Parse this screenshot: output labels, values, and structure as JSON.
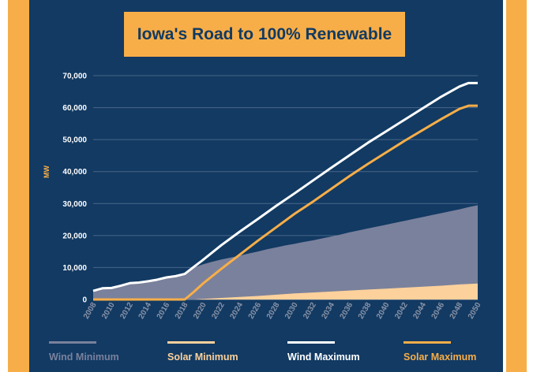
{
  "colors": {
    "background": "#123a63",
    "accent": "#f7ae48",
    "wind_min": "#7a819c",
    "solar_min": "#fcd19b",
    "wind_max": "#ffffff",
    "solar_max": "#f7ae48"
  },
  "chart_data": {
    "type": "area",
    "title": "Iowa's Road to 100% Renewable",
    "ylabel": "MW",
    "xlabel": "",
    "ylim": [
      0,
      70000
    ],
    "xlim": [
      2008,
      2050
    ],
    "grid": true,
    "legend_position": "bottom",
    "y_ticks": [
      "0",
      "10,000",
      "20,000",
      "30,000",
      "40,000",
      "50,000",
      "60,000",
      "70,000"
    ],
    "x_ticks": [
      "2008",
      "2010",
      "2012",
      "2014",
      "2016",
      "2018",
      "2020",
      "2022",
      "2024",
      "2026",
      "2028",
      "2030",
      "2032",
      "2034",
      "2036",
      "2038",
      "2040",
      "2042",
      "2044",
      "2046",
      "2048",
      "2050"
    ],
    "series": [
      {
        "name": "Wind Minimum",
        "style": "area",
        "color": "#7a819c",
        "points": [
          [
            2008,
            2700
          ],
          [
            2009,
            3500
          ],
          [
            2010,
            3600
          ],
          [
            2011,
            4300
          ],
          [
            2012,
            5100
          ],
          [
            2013,
            5300
          ],
          [
            2014,
            5700
          ],
          [
            2015,
            6200
          ],
          [
            2016,
            6900
          ],
          [
            2017,
            7300
          ],
          [
            2018,
            8000
          ],
          [
            2019,
            10000
          ],
          [
            2020,
            11000
          ],
          [
            2021,
            11800
          ],
          [
            2022,
            12500
          ],
          [
            2023,
            13100
          ],
          [
            2024,
            13700
          ],
          [
            2025,
            14400
          ],
          [
            2026,
            15000
          ],
          [
            2027,
            15700
          ],
          [
            2028,
            16300
          ],
          [
            2029,
            16900
          ],
          [
            2030,
            17400
          ],
          [
            2031,
            18000
          ],
          [
            2032,
            18500
          ],
          [
            2033,
            19100
          ],
          [
            2034,
            19700
          ],
          [
            2035,
            20300
          ],
          [
            2036,
            21000
          ],
          [
            2037,
            21600
          ],
          [
            2038,
            22200
          ],
          [
            2039,
            22800
          ],
          [
            2040,
            23400
          ],
          [
            2041,
            24000
          ],
          [
            2042,
            24600
          ],
          [
            2043,
            25200
          ],
          [
            2044,
            25800
          ],
          [
            2045,
            26400
          ],
          [
            2046,
            27000
          ],
          [
            2047,
            27600
          ],
          [
            2048,
            28200
          ],
          [
            2049,
            28900
          ],
          [
            2050,
            29500
          ]
        ]
      },
      {
        "name": "Solar Minimum",
        "style": "area",
        "color": "#fcd19b",
        "points": [
          [
            2008,
            0
          ],
          [
            2019,
            0
          ],
          [
            2020,
            200
          ],
          [
            2022,
            500
          ],
          [
            2024,
            800
          ],
          [
            2026,
            1100
          ],
          [
            2028,
            1500
          ],
          [
            2030,
            1900
          ],
          [
            2032,
            2200
          ],
          [
            2034,
            2500
          ],
          [
            2036,
            2800
          ],
          [
            2038,
            3100
          ],
          [
            2040,
            3400
          ],
          [
            2042,
            3700
          ],
          [
            2044,
            4000
          ],
          [
            2046,
            4300
          ],
          [
            2048,
            4700
          ],
          [
            2050,
            5000
          ]
        ]
      },
      {
        "name": "Wind Maximum",
        "style": "line",
        "color": "#ffffff",
        "points": [
          [
            2008,
            2700
          ],
          [
            2009,
            3500
          ],
          [
            2010,
            3600
          ],
          [
            2011,
            4300
          ],
          [
            2012,
            5100
          ],
          [
            2013,
            5300
          ],
          [
            2014,
            5700
          ],
          [
            2015,
            6200
          ],
          [
            2016,
            6900
          ],
          [
            2017,
            7300
          ],
          [
            2018,
            8000
          ],
          [
            2019,
            10200
          ],
          [
            2020,
            12400
          ],
          [
            2022,
            17000
          ],
          [
            2024,
            21200
          ],
          [
            2026,
            25200
          ],
          [
            2028,
            29300
          ],
          [
            2030,
            33200
          ],
          [
            2032,
            37200
          ],
          [
            2034,
            41200
          ],
          [
            2036,
            45100
          ],
          [
            2038,
            49000
          ],
          [
            2040,
            52600
          ],
          [
            2042,
            56200
          ],
          [
            2044,
            59800
          ],
          [
            2046,
            63400
          ],
          [
            2048,
            66600
          ],
          [
            2049,
            67700
          ],
          [
            2050,
            67700
          ]
        ]
      },
      {
        "name": "Solar Maximum",
        "style": "line",
        "color": "#f7ae48",
        "points": [
          [
            2008,
            0
          ],
          [
            2018,
            0
          ],
          [
            2019,
            2400
          ],
          [
            2020,
            5000
          ],
          [
            2022,
            9600
          ],
          [
            2024,
            14000
          ],
          [
            2026,
            18400
          ],
          [
            2028,
            22600
          ],
          [
            2030,
            26800
          ],
          [
            2032,
            30600
          ],
          [
            2034,
            34600
          ],
          [
            2036,
            38600
          ],
          [
            2038,
            42400
          ],
          [
            2040,
            46000
          ],
          [
            2042,
            49600
          ],
          [
            2044,
            53000
          ],
          [
            2046,
            56400
          ],
          [
            2048,
            59600
          ],
          [
            2049,
            60600
          ],
          [
            2050,
            60600
          ]
        ]
      }
    ]
  }
}
